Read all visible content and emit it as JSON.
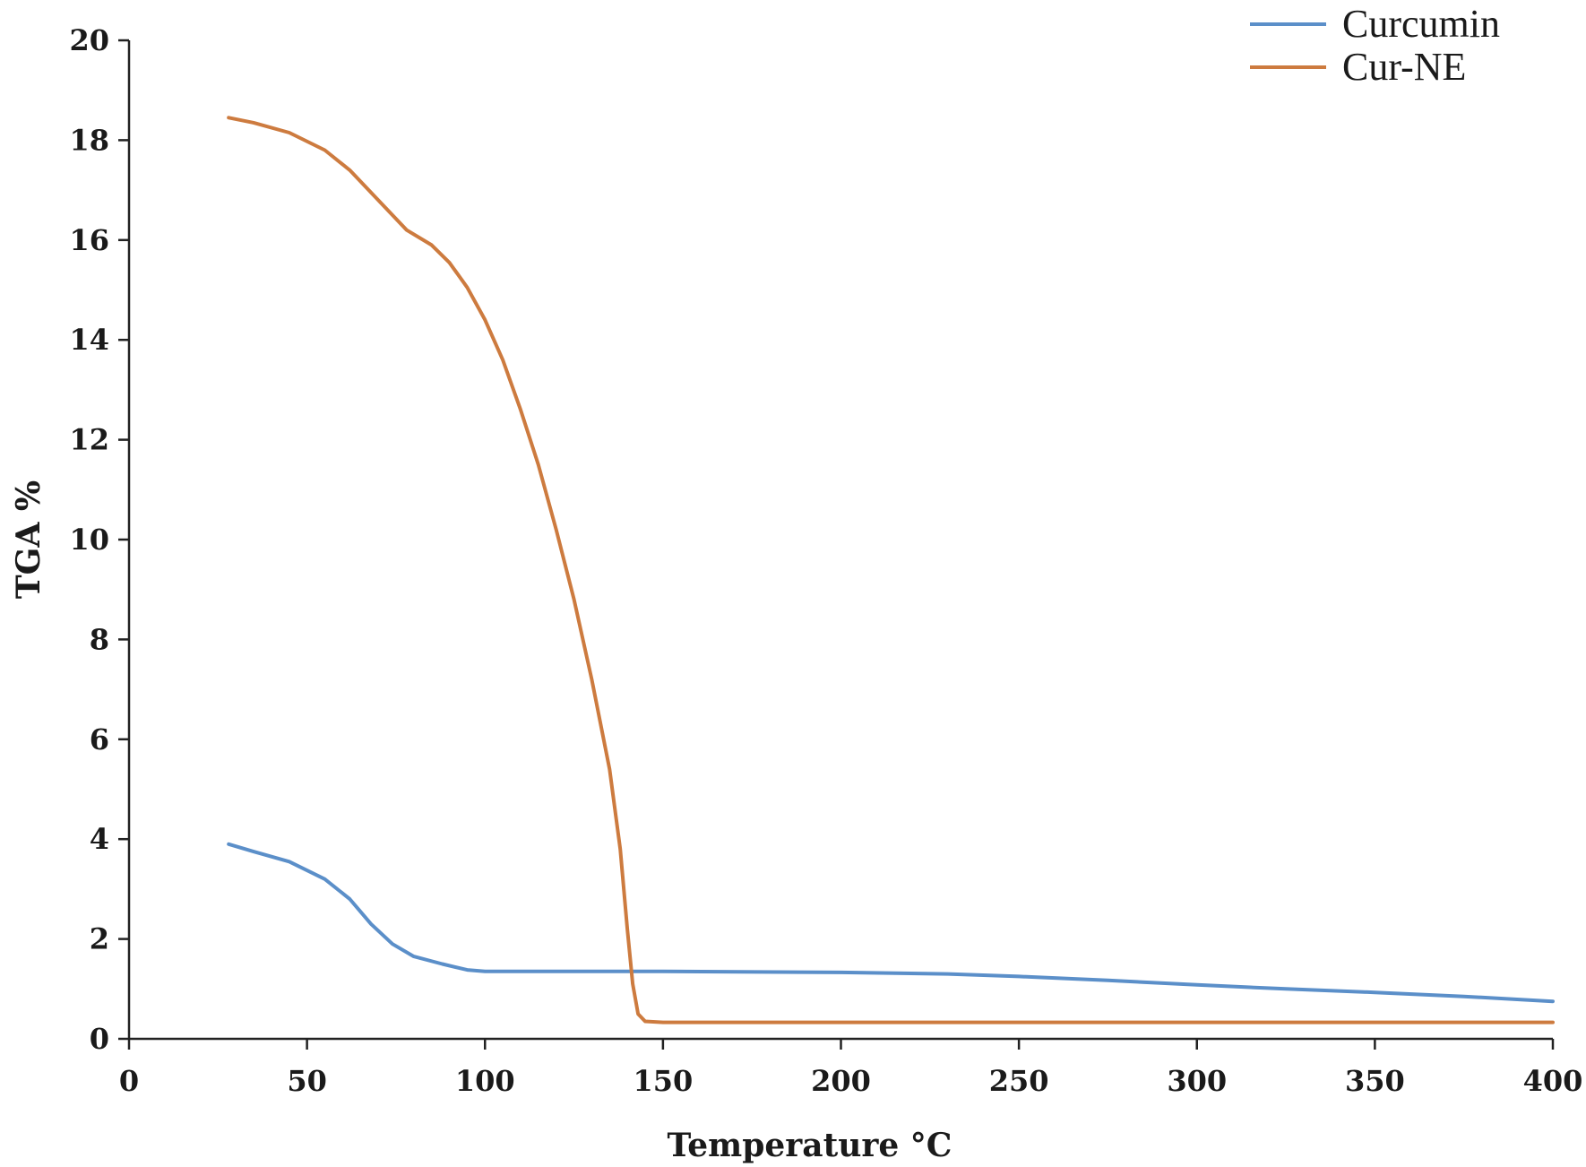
{
  "chart_data": {
    "type": "line",
    "title": "",
    "xlabel": "Temperature  °C",
    "ylabel": "TGA %",
    "xlim": [
      0,
      400
    ],
    "ylim": [
      0,
      20
    ],
    "x_ticks": [
      0,
      50,
      100,
      150,
      200,
      250,
      300,
      350,
      400
    ],
    "y_ticks": [
      0,
      2,
      4,
      6,
      8,
      10,
      12,
      14,
      16,
      18,
      20
    ],
    "grid": false,
    "legend_position": "top-right",
    "series": [
      {
        "name": "Curcumin",
        "color": "#5b8fc9",
        "points": [
          [
            28,
            3.9
          ],
          [
            35,
            3.75
          ],
          [
            45,
            3.55
          ],
          [
            55,
            3.2
          ],
          [
            62,
            2.8
          ],
          [
            68,
            2.3
          ],
          [
            74,
            1.9
          ],
          [
            80,
            1.65
          ],
          [
            88,
            1.5
          ],
          [
            95,
            1.38
          ],
          [
            100,
            1.35
          ],
          [
            120,
            1.35
          ],
          [
            150,
            1.35
          ],
          [
            200,
            1.33
          ],
          [
            230,
            1.3
          ],
          [
            250,
            1.25
          ],
          [
            275,
            1.17
          ],
          [
            300,
            1.08
          ],
          [
            325,
            1.0
          ],
          [
            350,
            0.93
          ],
          [
            375,
            0.85
          ],
          [
            400,
            0.75
          ]
        ]
      },
      {
        "name": "Cur-NE",
        "color": "#cd7b3f",
        "points": [
          [
            28,
            18.45
          ],
          [
            35,
            18.35
          ],
          [
            45,
            18.15
          ],
          [
            55,
            17.8
          ],
          [
            62,
            17.4
          ],
          [
            70,
            16.8
          ],
          [
            78,
            16.2
          ],
          [
            85,
            15.9
          ],
          [
            90,
            15.55
          ],
          [
            95,
            15.05
          ],
          [
            100,
            14.4
          ],
          [
            105,
            13.6
          ],
          [
            110,
            12.6
          ],
          [
            115,
            11.5
          ],
          [
            120,
            10.2
          ],
          [
            125,
            8.8
          ],
          [
            130,
            7.2
          ],
          [
            135,
            5.4
          ],
          [
            138,
            3.8
          ],
          [
            140,
            2.2
          ],
          [
            141.5,
            1.1
          ],
          [
            143,
            0.5
          ],
          [
            145,
            0.35
          ],
          [
            150,
            0.33
          ],
          [
            200,
            0.33
          ],
          [
            300,
            0.33
          ],
          [
            400,
            0.33
          ]
        ]
      }
    ]
  }
}
